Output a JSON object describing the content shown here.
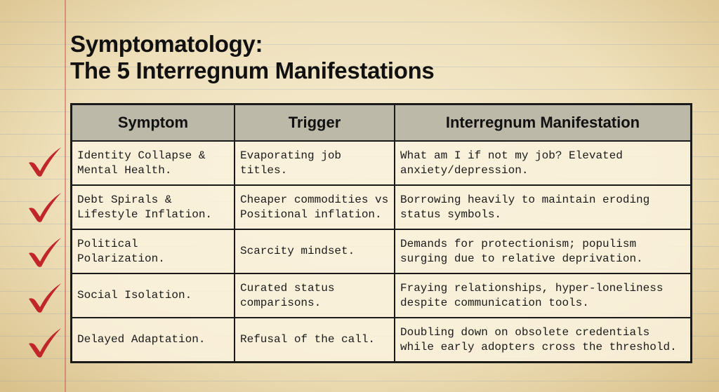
{
  "title": {
    "line1": "Symptomatology:",
    "line2": "The 5 Interregnum Manifestations"
  },
  "table": {
    "headers": [
      "Symptom",
      "Trigger",
      "Interregnum Manifestation"
    ],
    "rows": [
      [
        "Identity Collapse & Mental Health.",
        "Evaporating job titles.",
        "What am I if not my job? Elevated anxiety/depression."
      ],
      [
        "Debt Spirals & Lifestyle Inflation.",
        "Cheaper commodities vs Positional inflation.",
        "Borrowing heavily to maintain eroding status symbols."
      ],
      [
        "Political Polarization.",
        "Scarcity mindset.",
        "Demands for protectionism; populism surging due to relative deprivation."
      ],
      [
        "Social Isolation.",
        "Curated status comparisons.",
        "Fraying relationships, hyper-loneliness despite communication tools."
      ],
      [
        "Delayed Adaptation.",
        "Refusal of the call.",
        "Doubling down on obsolete credentials while early adopters cross the threshold."
      ]
    ]
  },
  "colors": {
    "check": "#c0262a",
    "header_bg": "#bdb9a8",
    "paper": "#f1e6c8"
  },
  "icons": {
    "row_marker": "checkmark-icon"
  }
}
